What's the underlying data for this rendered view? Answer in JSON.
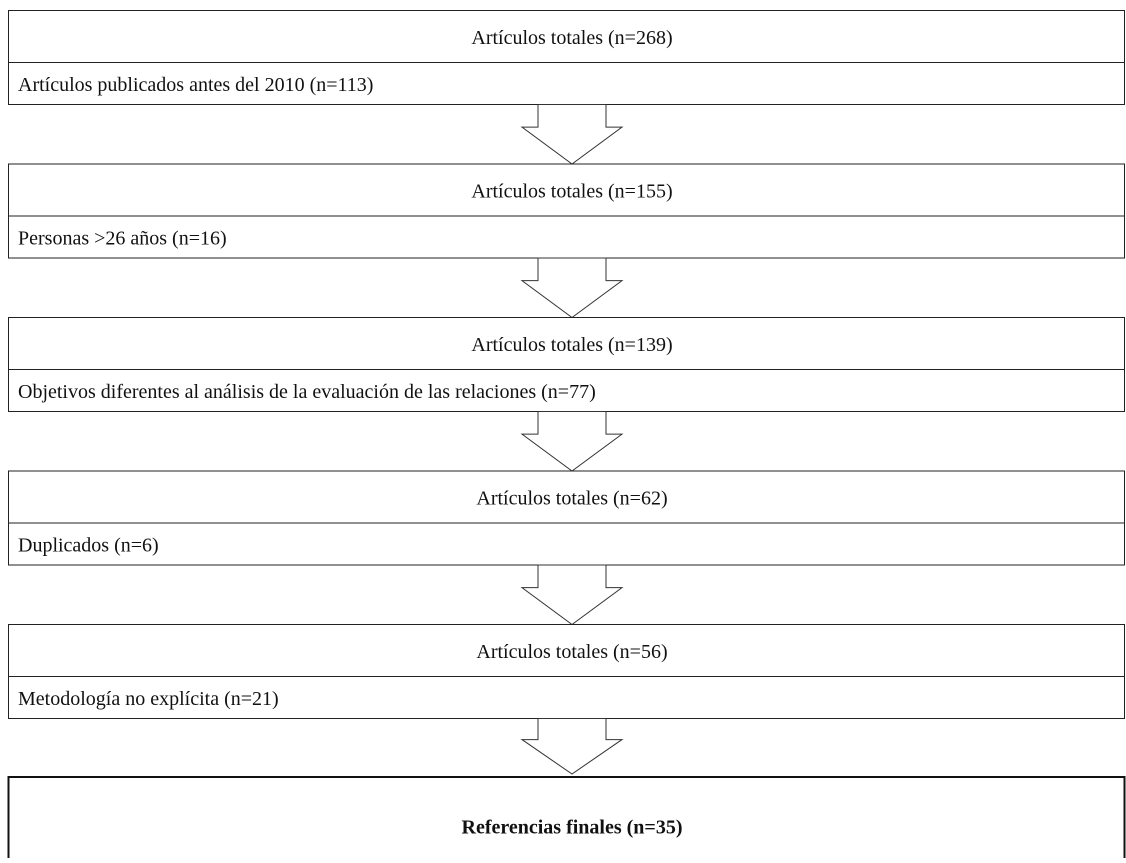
{
  "stages": [
    {
      "total": "Artículos totales (n=268)",
      "excluded": "Artículos publicados antes del 2010 (n=113)"
    },
    {
      "total": "Artículos totales (n=155)",
      "excluded": "Personas >26 años (n=16)"
    },
    {
      "total": "Artículos totales (n=139)",
      "excluded": "Objetivos diferentes al análisis de la evaluación de las relaciones (n=77)"
    },
    {
      "total": "Artículos totales (n=62)",
      "excluded": "Duplicados (n=6)"
    },
    {
      "total": "Artículos totales (n=56)",
      "excluded": "Metodología no explícita (n=21)"
    }
  ],
  "final": "Referencias finales (n=35)"
}
